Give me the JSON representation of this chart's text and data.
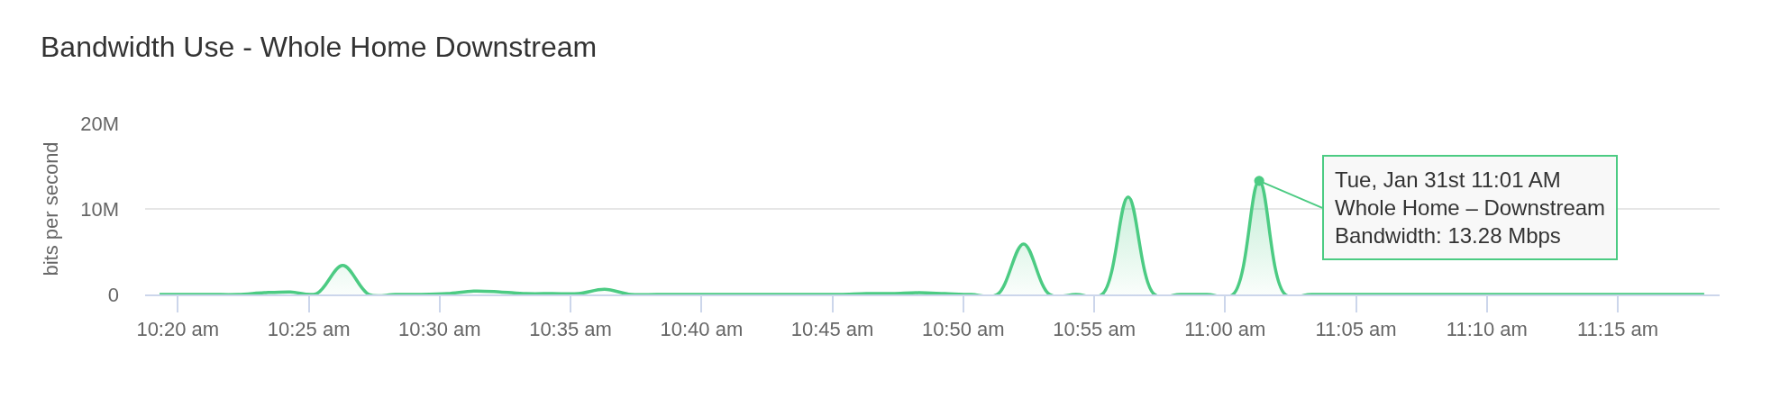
{
  "chart_data": {
    "type": "area",
    "title": "Bandwidth Use - Whole Home Downstream",
    "ylabel": "bits per second",
    "x": [
      10.3217,
      10.3383,
      10.355,
      10.3717,
      10.3883,
      10.405,
      10.4217,
      10.4383,
      10.455,
      10.4717,
      10.4883,
      10.505,
      10.5217,
      10.5383,
      10.555,
      10.5717,
      10.5883,
      10.605,
      10.6217,
      10.6383,
      10.655,
      10.6717,
      10.6883,
      10.705,
      10.7217,
      10.7383,
      10.755,
      10.7717,
      10.7883,
      10.805,
      10.8217,
      10.8383,
      10.855,
      10.8717,
      10.8883,
      10.905,
      10.9217,
      10.9383,
      10.955,
      10.9717,
      10.9883,
      11.005,
      11.0217,
      11.0383,
      11.055,
      11.0717,
      11.0883,
      11.105,
      11.1217,
      11.1383,
      11.155,
      11.1717,
      11.1883,
      11.205,
      11.2217,
      11.2383,
      11.255,
      11.2717,
      11.2883,
      11.305
    ],
    "series": [
      {
        "color": "#4ccb83",
        "values": [
          0,
          0,
          0,
          0,
          200000,
          300000,
          100000,
          3400000,
          0,
          0,
          0,
          100000,
          400000,
          300000,
          100000,
          100000,
          100000,
          600000,
          0,
          0,
          0,
          0,
          0,
          0,
          0,
          0,
          0,
          100000,
          100000,
          200000,
          100000,
          0,
          0,
          5900000,
          0,
          0,
          0,
          11400000,
          0,
          0,
          0,
          0,
          13280000,
          0,
          0,
          0,
          0,
          0,
          0,
          0,
          0,
          0,
          0,
          0,
          0,
          0,
          0,
          0,
          0,
          0
        ]
      }
    ],
    "xlim": [
      10.3125,
      11.3148
    ],
    "xticks": [
      {
        "value": 10.3333,
        "label": "10:20 am"
      },
      {
        "value": 10.4167,
        "label": "10:25 am"
      },
      {
        "value": 10.5,
        "label": "10:30 am"
      },
      {
        "value": 10.5833,
        "label": "10:35 am"
      },
      {
        "value": 10.6667,
        "label": "10:40 am"
      },
      {
        "value": 10.75,
        "label": "10:45 am"
      },
      {
        "value": 10.8333,
        "label": "10:50 am"
      },
      {
        "value": 10.9167,
        "label": "10:55 am"
      },
      {
        "value": 11.0,
        "label": "11:00 am"
      },
      {
        "value": 11.0833,
        "label": "11:05 am"
      },
      {
        "value": 11.1667,
        "label": "11:10 am"
      },
      {
        "value": 11.25,
        "label": "11:15 am"
      }
    ],
    "ylim": [
      0,
      20000000
    ],
    "yticks": [
      0,
      {
        "value": 10000000,
        "label": "10M"
      },
      {
        "value": 20000000,
        "label": "20M"
      }
    ],
    "grid": "y",
    "annotations": [
      {
        "text": "Tue, Jan 31st 11:01 AM\nWhole Home – Downstream\nBandwidth: 13.28 Mbps",
        "x": 11.0217,
        "y": 13280000
      }
    ]
  }
}
